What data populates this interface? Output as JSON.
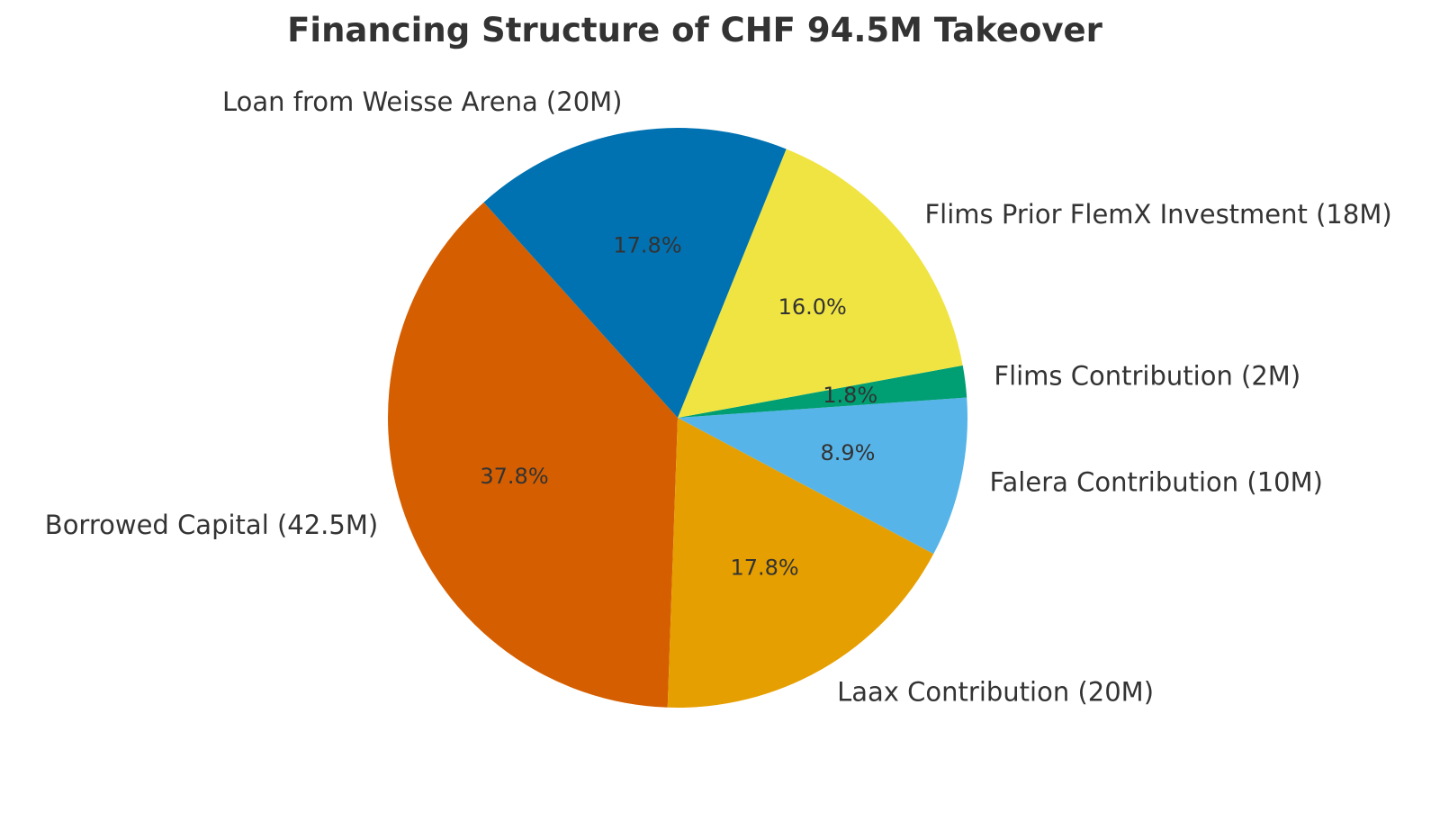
{
  "chart_data": {
    "type": "pie",
    "title": "Financing Structure of CHF 94.5M Takeover",
    "slices": [
      {
        "label": "Borrowed Capital (42.5M)",
        "value": 42.5,
        "pct_label": "37.8%",
        "color": "#D55E00"
      },
      {
        "label": "Laax Contribution (20M)",
        "value": 20,
        "pct_label": "17.8%",
        "color": "#E69F00"
      },
      {
        "label": "Falera Contribution (10M)",
        "value": 10,
        "pct_label": "8.9%",
        "color": "#56B4E9"
      },
      {
        "label": "Flims Contribution (2M)",
        "value": 2,
        "pct_label": "1.8%",
        "color": "#009E73"
      },
      {
        "label": "Flims Prior FlemX Investment (18M)",
        "value": 18,
        "pct_label": "16.0%",
        "color": "#F0E442"
      },
      {
        "label": "Loan from Weisse Arena (20M)",
        "value": 20,
        "pct_label": "17.8%",
        "color": "#0072B2"
      }
    ],
    "legend": "none"
  }
}
